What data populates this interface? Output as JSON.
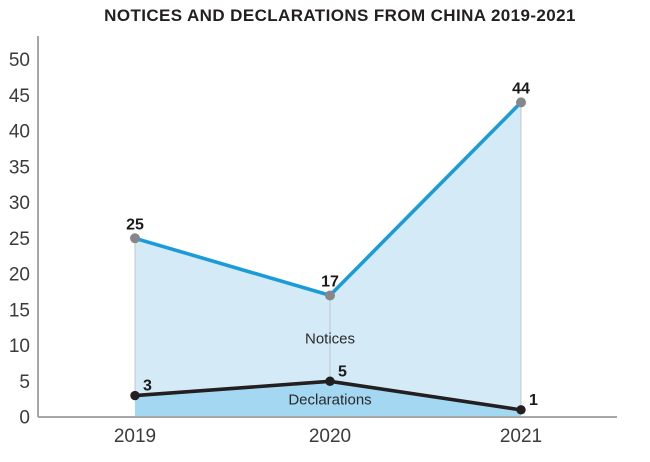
{
  "chart_data": {
    "type": "area",
    "title": "NOTICES AND DECLARATIONS FROM CHINA 2019-2021",
    "categories": [
      "2019",
      "2020",
      "2021"
    ],
    "series": [
      {
        "name": "Notices",
        "values": [
          25,
          17,
          44
        ],
        "line_color": "#1b9bd8",
        "fill_color": "#d4eaf7",
        "point_color": "#85878a"
      },
      {
        "name": "Declarations",
        "values": [
          3,
          5,
          1
        ],
        "line_color": "#231f20",
        "fill_color": "#a4d8f2",
        "point_color": "#231f20"
      }
    ],
    "xlabel": "",
    "ylabel": "",
    "ylim": [
      0,
      50
    ],
    "ytick_step": 5,
    "ytick_labels": [
      "0",
      "5",
      "10",
      "15",
      "20",
      "25",
      "30",
      "35",
      "40",
      "45",
      "50"
    ],
    "grid": false,
    "legend": "inline-area-labels",
    "droplines": true,
    "colors": {
      "axis": "#a5a7aa",
      "dropline": "#c3c7ca",
      "tick_text": "#3b3b3b",
      "value_label_text": "#1a1a1a",
      "series_label_text": "#2a2a2a",
      "title_text": "#231f20"
    }
  }
}
